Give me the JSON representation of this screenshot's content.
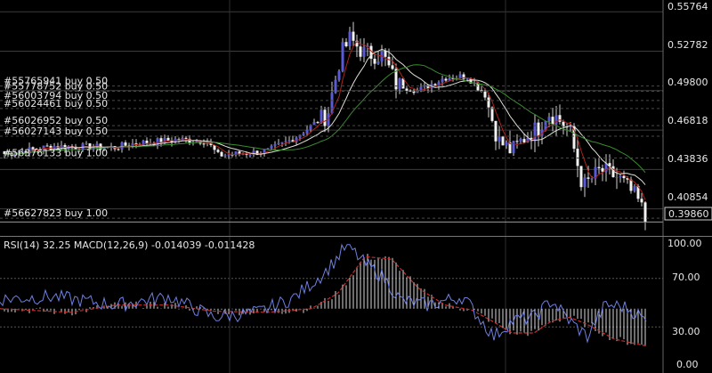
{
  "chart_data": [
    {
      "type": "candlestick",
      "ylim": [
        0.3935,
        0.5625
      ],
      "y_ticks": [
        "0.55764",
        "0.52782",
        "0.49800",
        "0.46818",
        "0.43836",
        "0.40854"
      ],
      "current_price_label": "0.39860",
      "series": [
        {
          "name": "MA-fast",
          "color": "#b0221c"
        },
        {
          "name": "MA-mid",
          "color": "#e0e0d8"
        },
        {
          "name": "MA-slow",
          "color": "#3a8a2e"
        }
      ],
      "order_lines": [
        {
          "label": "#55765941 buy 0.50",
          "price": 0.5015
        },
        {
          "label": "#55778752 buy 0.50",
          "price": 0.4975
        },
        {
          "label": "#56003794 buy 0.50",
          "price": 0.4905
        },
        {
          "label": "#56024461 buy 0.50",
          "price": 0.4845
        },
        {
          "label": "#56026952 buy 0.50",
          "price": 0.4715
        },
        {
          "label": "#56027143 buy 0.50",
          "price": 0.4635
        },
        {
          "label": "#56376133 buy 1.00",
          "price": 0.447
        },
        {
          "label": "#56627823 buy 1.00",
          "price": 0.4015
        }
      ]
    },
    {
      "type": "line",
      "header": "RSI(14) 32.25 MACD(12,26,9) -0.014039 -0.011428",
      "ylim": [
        0,
        100
      ],
      "y_ticks": [
        "100.00",
        "70.00",
        "30.00",
        "0.00"
      ],
      "series": [
        {
          "name": "RSI(14)",
          "color": "#6f7fe0"
        },
        {
          "name": "MACD signal",
          "color": "#c43030"
        },
        {
          "name": "MACD histogram",
          "color": "#d8d8d8"
        }
      ]
    }
  ]
}
